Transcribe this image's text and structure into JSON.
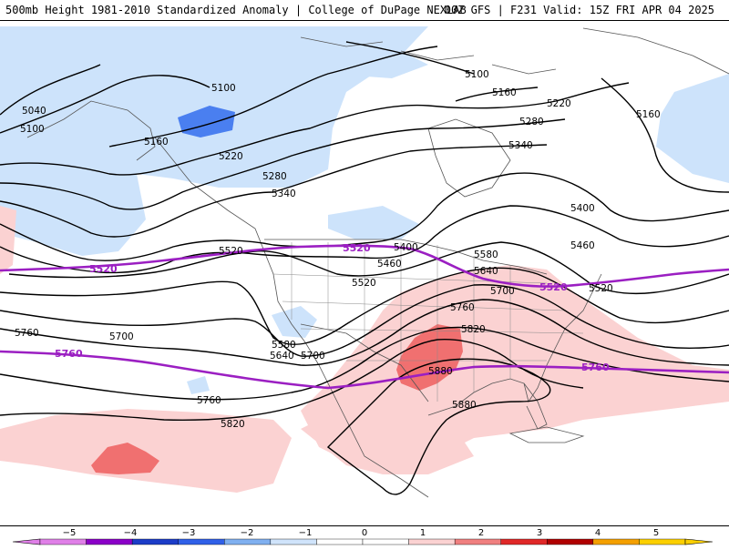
{
  "header": {
    "title_left": "500mb Height 1981-2010 Standardized Anomaly | College of DuPage NEXLAB",
    "title_right": "00Z GFS | F231 Valid: 15Z FRI APR 04 2025"
  },
  "map": {
    "height_contour_labels": [
      {
        "id": "l5100a",
        "text": "5100"
      },
      {
        "id": "l5040",
        "text": "5040"
      },
      {
        "id": "l5100b",
        "text": "5100"
      },
      {
        "id": "l5160a",
        "text": "5160"
      },
      {
        "id": "l5220a",
        "text": "5220"
      },
      {
        "id": "l5280a",
        "text": "5280"
      },
      {
        "id": "l5340a",
        "text": "5340"
      },
      {
        "id": "l5100c",
        "text": "5100"
      },
      {
        "id": "l5160b",
        "text": "5160"
      },
      {
        "id": "l5220b",
        "text": "5220"
      },
      {
        "id": "l5280b",
        "text": "5280"
      },
      {
        "id": "l5340b",
        "text": "5340"
      },
      {
        "id": "l5160c",
        "text": "5160"
      },
      {
        "id": "l5400a",
        "text": "5400"
      },
      {
        "id": "l5460a",
        "text": "5460"
      },
      {
        "id": "l5520a",
        "text": "5520"
      },
      {
        "id": "l5400b",
        "text": "5400"
      },
      {
        "id": "l5460b",
        "text": "5460"
      },
      {
        "id": "l5520b",
        "text": "5520"
      },
      {
        "id": "l5580a",
        "text": "5580"
      },
      {
        "id": "l5640a",
        "text": "5640"
      },
      {
        "id": "l5700a",
        "text": "5700"
      },
      {
        "id": "l5520c",
        "text": "5520"
      },
      {
        "id": "l5580b",
        "text": "5580"
      },
      {
        "id": "l5640b",
        "text": "5640"
      },
      {
        "id": "l5700b",
        "text": "5700"
      },
      {
        "id": "l5760a",
        "text": "5760"
      },
      {
        "id": "l5820a",
        "text": "5820"
      },
      {
        "id": "l5880a",
        "text": "5880"
      },
      {
        "id": "l5760b",
        "text": "5760"
      },
      {
        "id": "l5700c",
        "text": "5700"
      },
      {
        "id": "l5760c",
        "text": "5760"
      },
      {
        "id": "l5820b",
        "text": "5820"
      },
      {
        "id": "l5880b",
        "text": "5880"
      }
    ],
    "purple_contour_labels": [
      {
        "id": "p5520a",
        "text": "5520"
      },
      {
        "id": "p5520b",
        "text": "5520"
      },
      {
        "id": "p5520c",
        "text": "5520"
      },
      {
        "id": "p5760a",
        "text": "5760"
      },
      {
        "id": "p5760b",
        "text": "5760"
      }
    ],
    "colors": {
      "contour": "#000000",
      "climo_contour": "#9b1fc2",
      "anom_neg1": "#cde3fb",
      "anom_neg2": "#4a7ff0",
      "anom_pos1": "#fbd2d2",
      "anom_pos2": "#f07070",
      "anom_pos3": "#d21414"
    }
  },
  "colorbar": {
    "labels": [
      "−5",
      "−4",
      "−3",
      "−2",
      "−1",
      "0",
      "1",
      "2",
      "3",
      "4",
      "5"
    ],
    "colors": [
      "#e080e8",
      "#8b00c8",
      "#1c3cc8",
      "#3060e8",
      "#80b0f0",
      "#d0e4fb",
      "#ffffff",
      "#ffffff",
      "#fbd2d2",
      "#f08080",
      "#e02828",
      "#b00000",
      "#f4a000",
      "#fcd000"
    ]
  }
}
